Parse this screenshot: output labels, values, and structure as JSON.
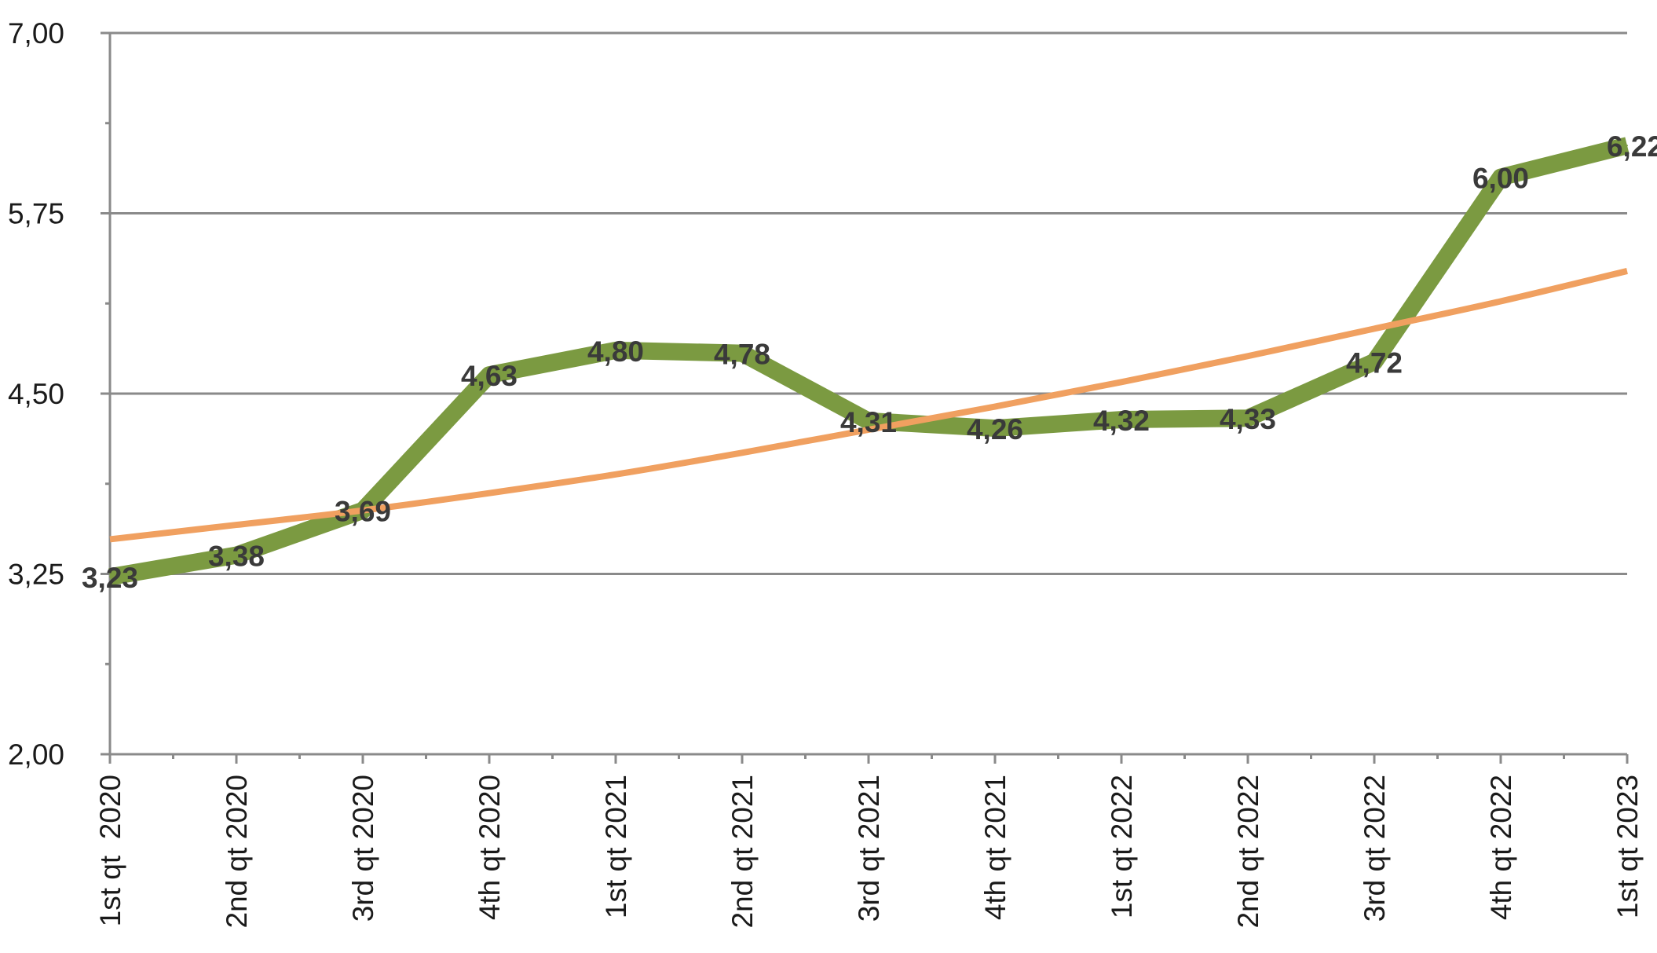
{
  "chart_data": {
    "type": "line",
    "title": "",
    "xlabel": "",
    "ylabel": "",
    "categories": [
      "1st qt  2020",
      "2nd qt 2020",
      "3rd qt 2020",
      "4th qt 2020",
      "1st qt 2021",
      "2nd qt 2021",
      "3rd qt 2021",
      "4th qt 2021",
      "1st qt 2022",
      "2nd qt 2022",
      "3rd qt 2022",
      "4th qt 2022",
      "1st qt 2023"
    ],
    "series": [
      {
        "values": [
          3.23,
          3.38,
          3.69,
          4.63,
          4.8,
          4.78,
          4.31,
          4.26,
          4.32,
          4.33,
          4.72,
          6.0,
          6.22
        ],
        "data_labels": [
          "3,23",
          "3,38",
          "3,69",
          "4,63",
          "4,80",
          "4,78",
          "4,31",
          "4,26",
          "4,32",
          "4,33",
          "4,72",
          "6,00",
          "6,22"
        ],
        "color": "#7b9a41"
      },
      {
        "type": "trendline",
        "values": [
          3.49,
          3.59,
          3.69,
          3.81,
          3.94,
          4.09,
          4.25,
          4.41,
          4.58,
          4.76,
          4.95,
          5.14,
          5.35
        ],
        "color": "#f0a060"
      }
    ],
    "ylim": [
      2.0,
      7.0
    ],
    "yticks": [
      2.0,
      3.25,
      4.5,
      5.75,
      7.0
    ],
    "ytick_labels": [
      "2,00",
      "3,25",
      "4,50",
      "5,75",
      "7,00"
    ],
    "grid": true,
    "legend": "none",
    "colors": {
      "grid": "#8a8a8a",
      "axis": "#8a8a8a"
    }
  }
}
